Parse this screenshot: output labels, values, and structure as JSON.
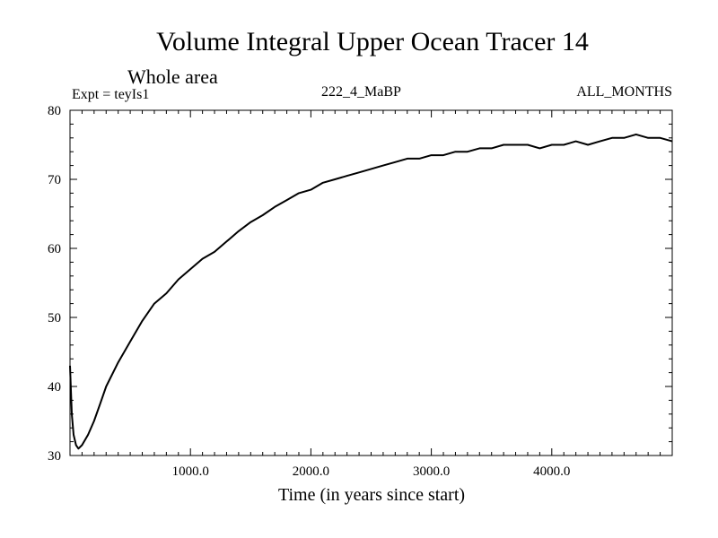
{
  "chart_data": {
    "type": "line",
    "title": "Volume Integral Upper Ocean Tracer 14",
    "subtitle": "Whole area",
    "header_left": "Expt = teyIs1",
    "header_center": "222_4_MaBP",
    "header_right": "ALL_MONTHS",
    "xlabel": "Time (in years since start)",
    "ylabel": "",
    "xlim": [
      0,
      5000
    ],
    "ylim": [
      30,
      80
    ],
    "xticks": [
      1000,
      2000,
      3000,
      4000
    ],
    "xtick_labels": [
      "1000.0",
      "2000.0",
      "3000.0",
      "4000.0"
    ],
    "yticks": [
      30,
      40,
      50,
      60,
      70,
      80
    ],
    "ytick_labels": [
      "30",
      "40",
      "50",
      "60",
      "70",
      "80"
    ],
    "grid": false,
    "series": [
      {
        "name": "tracer14",
        "color": "#000000",
        "x": [
          0,
          15,
          30,
          50,
          70,
          100,
          150,
          200,
          250,
          300,
          400,
          500,
          600,
          700,
          800,
          900,
          1000,
          1100,
          1200,
          1300,
          1400,
          1500,
          1600,
          1700,
          1800,
          1900,
          2000,
          2100,
          2200,
          2300,
          2400,
          2500,
          2600,
          2700,
          2800,
          2900,
          3000,
          3100,
          3200,
          3300,
          3400,
          3500,
          3600,
          3700,
          3800,
          3900,
          4000,
          4100,
          4200,
          4300,
          4400,
          4500,
          4600,
          4700,
          4800,
          4900,
          5000
        ],
        "values": [
          43,
          36,
          33,
          31.5,
          31,
          31.5,
          33,
          35,
          37.5,
          40,
          43.5,
          46.5,
          49.5,
          52,
          53.5,
          55.5,
          57,
          58.5,
          59.5,
          61,
          62.5,
          63.8,
          64.8,
          66,
          67,
          68,
          68.5,
          69.5,
          70,
          70.5,
          71,
          71.5,
          72,
          72.5,
          73,
          73,
          73.5,
          73.5,
          74,
          74,
          74.5,
          74.5,
          75,
          75,
          75,
          74.5,
          75,
          75,
          75.5,
          75,
          75.5,
          76,
          76,
          76.5,
          76,
          76,
          75.5
        ]
      }
    ]
  }
}
